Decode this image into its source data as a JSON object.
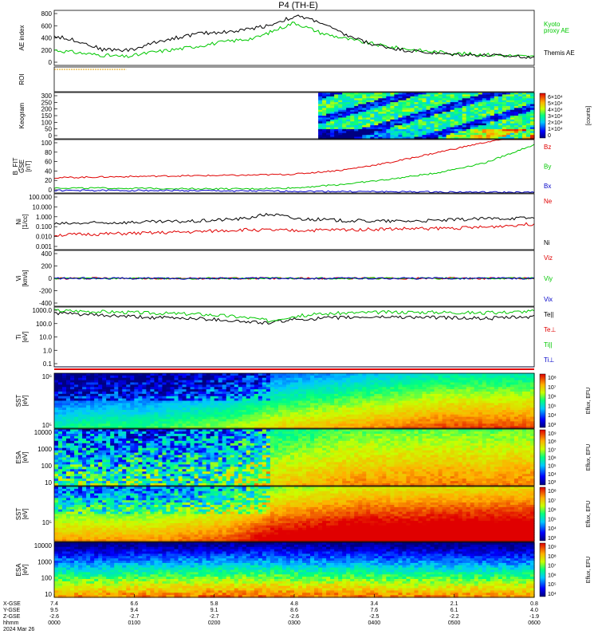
{
  "title": "P4 (TH-E)",
  "colors": {
    "kyoto_ae": "#00c800",
    "themis_ae": "#000000",
    "bz": "#e00000",
    "by": "#00c800",
    "bx": "#0000c8",
    "ne": "#e00000",
    "ni": "#000000",
    "te_par": "#000000",
    "te_perp": "#e00000",
    "ti_par": "#00c800",
    "ti_perp": "#0000c8",
    "roi_line": "#e0a000"
  },
  "colorbar_units": {
    "keogram": "[counts]",
    "spectra": "Eflux, EFU"
  },
  "chart_data": [
    {
      "type": "line",
      "panel": "ae",
      "ylabel": "AE index",
      "ylim": [
        -100,
        800
      ],
      "yticks": [
        "800",
        "600",
        "400",
        "200",
        "0"
      ],
      "series": [
        {
          "name": "Kyoto",
          "name2": "proxy AE",
          "color_key": "kyoto_ae",
          "x": [
            0,
            0.08,
            0.15,
            0.2,
            0.27,
            0.35,
            0.42,
            0.5,
            0.56,
            0.63,
            0.7,
            0.78,
            0.85,
            0.92,
            1.0
          ],
          "values": [
            150,
            80,
            40,
            110,
            180,
            280,
            350,
            600,
            420,
            300,
            200,
            130,
            90,
            70,
            40
          ]
        },
        {
          "name": "Themis AE",
          "color_key": "themis_ae",
          "x": [
            0,
            0.05,
            0.1,
            0.16,
            0.22,
            0.3,
            0.38,
            0.45,
            0.48,
            0.51,
            0.55,
            0.6,
            0.66,
            0.72,
            0.8,
            0.88,
            0.95,
            1.0
          ],
          "values": [
            380,
            300,
            160,
            150,
            300,
            420,
            460,
            560,
            650,
            700,
            620,
            420,
            250,
            160,
            90,
            70,
            50,
            40
          ]
        }
      ]
    },
    {
      "type": "line",
      "panel": "roi",
      "ylabel": "ROI"
    },
    {
      "type": "heatmap",
      "panel": "keogram",
      "ylabel": "Keogram",
      "ylim": [
        0,
        300
      ],
      "yticks": [
        "300",
        "250",
        "200",
        "150",
        "100",
        "50",
        "0"
      ],
      "colorbar_ticks": [
        "6×10⁴",
        "5×10⁴",
        "4×10⁴",
        "3×10⁴",
        "2×10⁴",
        "1×10⁴",
        "0"
      ],
      "data_start_fraction": 0.55
    },
    {
      "type": "line",
      "panel": "bfield",
      "ylabel": "B_FIT",
      "ylabel2": "GSE",
      "ylabel3": "[nT]",
      "ylim": [
        -5,
        100
      ],
      "yticks": [
        "100",
        "80",
        "60",
        "40",
        "20",
        "0"
      ],
      "series": [
        {
          "name": "Bz",
          "color_key": "bz",
          "x": [
            0,
            0.2,
            0.4,
            0.5,
            0.6,
            0.7,
            0.8,
            0.9,
            1.0
          ],
          "values": [
            25,
            28,
            30,
            32,
            40,
            55,
            75,
            95,
            110
          ]
        },
        {
          "name": "By",
          "color_key": "by",
          "x": [
            0,
            0.2,
            0.4,
            0.5,
            0.6,
            0.7,
            0.8,
            0.9,
            1.0
          ],
          "values": [
            5,
            4,
            3,
            5,
            12,
            22,
            35,
            55,
            90
          ]
        },
        {
          "name": "Bx",
          "color_key": "bx",
          "x": [
            0,
            0.2,
            0.4,
            0.6,
            0.8,
            1.0
          ],
          "values": [
            0,
            0,
            -1,
            -2,
            -3,
            -4
          ]
        }
      ]
    },
    {
      "type": "line",
      "panel": "density",
      "ylabel": "Ni",
      "ylabel2": "[1/cc]",
      "ylim_log": [
        0.001,
        100
      ],
      "yticks": [
        "100.000",
        "10.000",
        "1.000",
        "0.100",
        "0.010",
        "0.001"
      ],
      "series": [
        {
          "name": "Ne",
          "color_key": "ne",
          "x": [
            0,
            0.1,
            0.2,
            0.3,
            0.4,
            0.5,
            0.6,
            0.7,
            0.8,
            0.9,
            1.0
          ],
          "values": [
            0.02,
            0.025,
            0.03,
            0.04,
            0.06,
            0.05,
            0.06,
            0.07,
            0.08,
            0.1,
            0.2
          ]
        },
        {
          "name": "Ni",
          "color_key": "ni",
          "x": [
            0,
            0.1,
            0.2,
            0.3,
            0.4,
            0.45,
            0.5,
            0.6,
            0.7,
            0.8,
            0.9,
            1.0
          ],
          "values": [
            0.2,
            0.25,
            0.3,
            0.35,
            0.6,
            1.5,
            0.6,
            0.4,
            0.35,
            0.4,
            0.6,
            0.7
          ]
        }
      ]
    },
    {
      "type": "line",
      "panel": "velocity",
      "ylabel": "Vi",
      "ylabel2": "[km/s]",
      "ylim": [
        -600,
        600
      ],
      "yticks": [
        "400",
        "200",
        "0",
        "-200",
        "-400"
      ],
      "series": [
        {
          "name": "Viz",
          "color_key": "bz",
          "x": [
            0,
            1
          ],
          "values": [
            0,
            0
          ]
        },
        {
          "name": "Viy",
          "color_key": "by",
          "x": [
            0,
            1
          ],
          "values": [
            0,
            0
          ]
        },
        {
          "name": "Vix",
          "color_key": "bx",
          "x": [
            0,
            1
          ],
          "values": [
            0,
            0
          ]
        }
      ]
    },
    {
      "type": "line",
      "panel": "temperature",
      "ylabel": "Ti",
      "ylabel2": "[eV]",
      "ylim_log": [
        0.03,
        5000
      ],
      "yticks": [
        "1000.0",
        "100.0",
        "10.0",
        "1.0",
        "0.1"
      ],
      "series": [
        {
          "name": "Te||",
          "color_key": "te_par",
          "x": [
            0,
            0.1,
            0.2,
            0.3,
            0.4,
            0.45,
            0.5,
            0.6,
            0.7,
            0.8,
            0.9,
            1.0
          ],
          "values": [
            1500,
            900,
            600,
            500,
            250,
            200,
            400,
            600,
            700,
            600,
            500,
            700
          ]
        },
        {
          "name": "Te⊥",
          "color_key": "te_perp",
          "x": [
            0,
            1
          ],
          "values": [
            0.01,
            0.01
          ]
        },
        {
          "name": "Ti||",
          "color_key": "ti_par",
          "x": [
            0,
            0.1,
            0.2,
            0.3,
            0.4,
            0.45,
            0.5,
            0.6,
            0.7,
            0.8,
            0.9,
            1.0
          ],
          "values": [
            2500,
            2000,
            1500,
            1200,
            600,
            300,
            800,
            1500,
            1800,
            1800,
            1500,
            2200
          ]
        },
        {
          "name": "Ti⊥",
          "color_key": "ti_perp",
          "x": [
            0,
            1
          ],
          "values": [
            0.01,
            0.01
          ]
        }
      ]
    },
    {
      "type": "heatmap",
      "panel": "sst_e",
      "ylabel": "SST",
      "ylabel2": "[eV]",
      "yticks": [
        "10⁶",
        "10⁵"
      ],
      "colorbar_ticks": [
        "10⁸",
        "10⁷",
        "10⁶",
        "10⁵",
        "10⁴",
        "10³"
      ],
      "trend": [
        0.2,
        0.25,
        0.25,
        0.3,
        0.35,
        0.45,
        0.5,
        0.55,
        0.6,
        0.65,
        0.65,
        0.65
      ]
    },
    {
      "type": "heatmap",
      "panel": "esa_e",
      "ylabel": "ESA",
      "ylabel2": "[eV]",
      "yticks": [
        "10000",
        "1000",
        "100",
        "10"
      ],
      "colorbar_ticks": [
        "10⁹",
        "10⁸",
        "10⁷",
        "10⁶",
        "10⁵",
        "10⁴",
        "10³"
      ],
      "trend": [
        0.3,
        0.3,
        0.3,
        0.3,
        0.35,
        0.5,
        0.55,
        0.6,
        0.6,
        0.62,
        0.6,
        0.62
      ]
    },
    {
      "type": "heatmap",
      "panel": "sst_i",
      "ylabel": "SST",
      "ylabel2": "[eV]",
      "yticks": [
        "10⁵"
      ],
      "colorbar_ticks": [
        "10⁸",
        "10⁷",
        "10⁶",
        "10⁵",
        "10⁴",
        "10³"
      ],
      "trend": [
        0.55,
        0.55,
        0.55,
        0.6,
        0.65,
        0.8,
        0.85,
        0.9,
        0.9,
        0.92,
        0.92,
        0.93
      ]
    },
    {
      "type": "heatmap",
      "panel": "esa_i",
      "ylabel": "ESA",
      "ylabel2": "[eV]",
      "yticks": [
        "10000",
        "1000",
        "100",
        "10"
      ],
      "colorbar_ticks": [
        "10⁹",
        "10⁸",
        "10⁷",
        "10⁶",
        "10⁵",
        "10⁴"
      ],
      "trend": [
        0.35,
        0.35,
        0.38,
        0.38,
        0.4,
        0.4,
        0.38,
        0.38,
        0.36,
        0.36,
        0.35,
        0.35
      ]
    }
  ],
  "xaxis": {
    "row_labels": [
      "X-GSE",
      "Y-GSE",
      "Z-GSE",
      "hhmm",
      "2024 Mar 26"
    ],
    "ticks": [
      {
        "x": "7.4",
        "y": "9.5",
        "z": "-2.6",
        "t": "0000"
      },
      {
        "x": "6.6",
        "y": "9.4",
        "z": "-2.7",
        "t": "0100"
      },
      {
        "x": "5.8",
        "y": "9.1",
        "z": "-2.7",
        "t": "0200"
      },
      {
        "x": "4.8",
        "y": "8.6",
        "z": "-2.6",
        "t": "0300"
      },
      {
        "x": "3.4",
        "y": "7.6",
        "z": "-2.5",
        "t": "0400"
      },
      {
        "x": "2.1",
        "y": "6.1",
        "z": "-2.2",
        "t": "0500"
      },
      {
        "x": "0.8",
        "y": "4.0",
        "z": "-1.9",
        "t": "0600"
      }
    ]
  }
}
